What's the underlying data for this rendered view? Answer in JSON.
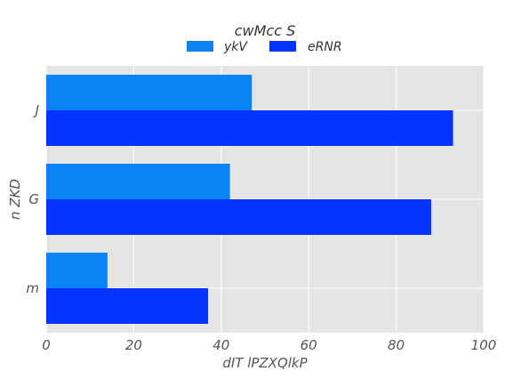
{
  "chart_data": {
    "type": "bar",
    "orientation": "horizontal",
    "title": "cwMcc  S",
    "xlabel": "dIT lPZXQlkP",
    "ylabel": "n ZKD",
    "categories": [
      "J",
      "G",
      "m"
    ],
    "series": [
      {
        "name": "ykV",
        "color": "#0a84f5",
        "values": [
          47,
          42,
          14
        ]
      },
      {
        "name": "eRNR",
        "color": "#0433ff",
        "values": [
          93,
          88,
          37
        ]
      }
    ],
    "xlim": [
      0,
      100
    ],
    "xticks": [
      0,
      20,
      40,
      60,
      80,
      100
    ],
    "grid": true,
    "background": "#e5e5e5",
    "legend_position": "top-center"
  }
}
